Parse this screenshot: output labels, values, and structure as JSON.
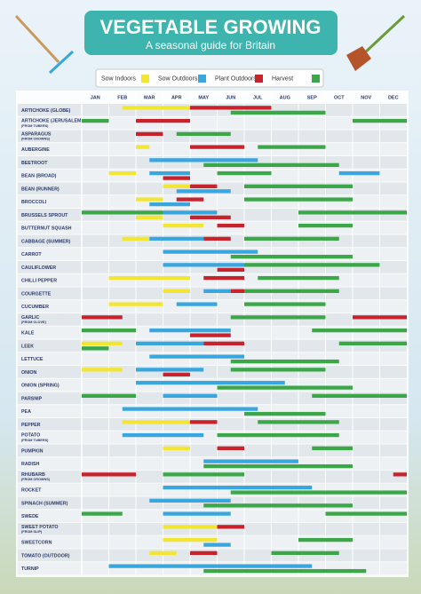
{
  "chart_data": {
    "type": "gantt",
    "title": "VEGETABLE GROWING",
    "subtitle": "A seasonal guide for Britain",
    "activities": [
      {
        "name": "Sow Indoors",
        "color": "#f3e633"
      },
      {
        "name": "Sow Outdoors",
        "color": "#3aa6de"
      },
      {
        "name": "Plant Outdoors",
        "color": "#c7232d"
      },
      {
        "name": "Harvest",
        "color": "#3ba748"
      }
    ],
    "categories": [
      "JAN",
      "FEB",
      "MAR",
      "APR",
      "MAY",
      "JUN",
      "JUL",
      "AUG",
      "SEP",
      "OCT",
      "NOV",
      "DEC"
    ],
    "xlim": [
      0,
      12
    ],
    "rows": [
      {
        "label": "ARTICHOKE (GLOBE)",
        "bars": [
          [
            0,
            1.5,
            4
          ],
          [
            2,
            4,
            7
          ],
          [
            3,
            5.5,
            9
          ]
        ]
      },
      {
        "label": "ARTICHOKE (JERUSALEM)",
        "sub": "(FROM TUBERS)",
        "bars": [
          [
            3,
            0,
            1
          ],
          [
            2,
            2,
            4
          ],
          [
            3,
            10,
            12
          ]
        ]
      },
      {
        "label": "ASPARAGUS",
        "sub": "(FROM CROWNS)",
        "bars": [
          [
            2,
            2,
            3
          ],
          [
            3,
            3.5,
            5.5
          ]
        ]
      },
      {
        "label": "AUBERGINE",
        "bars": [
          [
            0,
            2,
            2.5
          ],
          [
            2,
            4,
            6
          ],
          [
            3,
            6.5,
            9
          ]
        ]
      },
      {
        "label": "BEETROOT",
        "bars": [
          [
            1,
            2.5,
            6.5
          ],
          [
            3,
            4.5,
            9.5
          ]
        ]
      },
      {
        "label": "BEAN (BROAD)",
        "bars": [
          [
            0,
            1,
            2
          ],
          [
            1,
            2.5,
            4
          ],
          [
            2,
            3,
            4
          ],
          [
            3,
            5,
            7
          ],
          [
            1,
            9.5,
            11
          ]
        ]
      },
      {
        "label": "BEAN (RUNNER)",
        "bars": [
          [
            0,
            3,
            4
          ],
          [
            1,
            3.5,
            5.5
          ],
          [
            2,
            4,
            5
          ],
          [
            3,
            6,
            10
          ]
        ]
      },
      {
        "label": "BROCCOLI",
        "bars": [
          [
            0,
            2,
            3
          ],
          [
            1,
            2.5,
            4
          ],
          [
            2,
            3.5,
            4.5
          ],
          [
            3,
            6,
            10
          ]
        ]
      },
      {
        "label": "BRUSSELS SPROUT",
        "bars": [
          [
            3,
            0,
            3
          ],
          [
            0,
            2,
            3
          ],
          [
            1,
            3,
            5
          ],
          [
            2,
            4,
            5.5
          ],
          [
            3,
            8,
            12
          ]
        ]
      },
      {
        "label": "BUTTERNUT SQUASH",
        "bars": [
          [
            0,
            3,
            4.5
          ],
          [
            2,
            5,
            6
          ],
          [
            3,
            8,
            10
          ]
        ]
      },
      {
        "label": "CABBAGE (SUMMER)",
        "bars": [
          [
            0,
            1.5,
            2.5
          ],
          [
            1,
            2.5,
            4.5
          ],
          [
            2,
            4.5,
            5.5
          ],
          [
            3,
            6,
            9.5
          ]
        ]
      },
      {
        "label": "CARROT",
        "bars": [
          [
            1,
            3,
            6.5
          ],
          [
            3,
            5.5,
            10
          ]
        ]
      },
      {
        "label": "CAULIFLOWER",
        "bars": [
          [
            1,
            3,
            6
          ],
          [
            2,
            5,
            6
          ],
          [
            3,
            6,
            11
          ]
        ]
      },
      {
        "label": "CHILLI PEPPER",
        "bars": [
          [
            0,
            1,
            4
          ],
          [
            2,
            4.5,
            6
          ],
          [
            3,
            6.5,
            9.5
          ]
        ]
      },
      {
        "label": "COURGETTE",
        "bars": [
          [
            0,
            3,
            4
          ],
          [
            1,
            4.5,
            5.5
          ],
          [
            2,
            5.5,
            6
          ],
          [
            3,
            6,
            9.5
          ]
        ]
      },
      {
        "label": "CUCUMBER",
        "bars": [
          [
            0,
            1,
            3
          ],
          [
            1,
            3.5,
            5
          ],
          [
            3,
            6,
            9
          ]
        ]
      },
      {
        "label": "GARLIC",
        "sub": "(FROM CLOVE)",
        "bars": [
          [
            2,
            0,
            1.5
          ],
          [
            3,
            5.5,
            9
          ],
          [
            2,
            10,
            12
          ]
        ]
      },
      {
        "label": "KALE",
        "bars": [
          [
            3,
            0,
            2
          ],
          [
            1,
            2.5,
            5.5
          ],
          [
            2,
            4,
            5.5
          ],
          [
            3,
            8.5,
            12
          ]
        ]
      },
      {
        "label": "LEEK",
        "bars": [
          [
            0,
            0,
            1.5
          ],
          [
            3,
            0,
            1
          ],
          [
            1,
            2,
            4.5
          ],
          [
            2,
            4.5,
            6
          ],
          [
            3,
            9.5,
            12
          ]
        ]
      },
      {
        "label": "LETTUCE",
        "bars": [
          [
            1,
            2.5,
            6
          ],
          [
            3,
            5.5,
            9.5
          ]
        ]
      },
      {
        "label": "ONION",
        "bars": [
          [
            0,
            0,
            1.5
          ],
          [
            1,
            2,
            4.5
          ],
          [
            2,
            3,
            4
          ],
          [
            3,
            5.5,
            9
          ]
        ]
      },
      {
        "label": "ONION (SPRING)",
        "bars": [
          [
            1,
            2,
            7.5
          ],
          [
            3,
            5,
            10
          ]
        ]
      },
      {
        "label": "PARSNIP",
        "bars": [
          [
            3,
            0,
            2
          ],
          [
            1,
            3,
            5
          ],
          [
            3,
            8.5,
            12
          ]
        ]
      },
      {
        "label": "PEA",
        "bars": [
          [
            1,
            1.5,
            6.5
          ],
          [
            3,
            6,
            9
          ]
        ]
      },
      {
        "label": "PEPPER",
        "bars": [
          [
            0,
            1.5,
            4
          ],
          [
            2,
            4,
            5
          ],
          [
            3,
            6.5,
            9.5
          ]
        ]
      },
      {
        "label": "POTATO",
        "sub": "(FROM TUBERS)",
        "bars": [
          [
            1,
            1.5,
            4.5
          ],
          [
            3,
            5,
            9.5
          ]
        ]
      },
      {
        "label": "PUMPKIN",
        "bars": [
          [
            0,
            3,
            4
          ],
          [
            2,
            5,
            6
          ],
          [
            3,
            8.5,
            10
          ]
        ]
      },
      {
        "label": "RADISH",
        "bars": [
          [
            1,
            4.5,
            8
          ],
          [
            3,
            4.5,
            10
          ]
        ]
      },
      {
        "label": "RHUBARB",
        "sub": "(FROM CROWNS)",
        "bars": [
          [
            2,
            0,
            2
          ],
          [
            3,
            3,
            6
          ],
          [
            2,
            11.5,
            12
          ]
        ]
      },
      {
        "label": "ROCKET",
        "bars": [
          [
            1,
            3,
            8.5
          ],
          [
            3,
            5.5,
            12
          ]
        ]
      },
      {
        "label": "SPINACH (SUMMER)",
        "bars": [
          [
            1,
            2.5,
            5.5
          ],
          [
            3,
            4.5,
            10
          ]
        ]
      },
      {
        "label": "SWEDE",
        "bars": [
          [
            3,
            0,
            1.5
          ],
          [
            1,
            3,
            5.5
          ],
          [
            3,
            9,
            12
          ]
        ]
      },
      {
        "label": "SWEET POTATO",
        "sub": "(FROM SLIP)",
        "bars": [
          [
            0,
            3,
            5
          ],
          [
            2,
            5,
            6
          ]
        ]
      },
      {
        "label": "SWEETCORN",
        "bars": [
          [
            0,
            3,
            5
          ],
          [
            1,
            4.5,
            5.5
          ],
          [
            3,
            8,
            10
          ]
        ]
      },
      {
        "label": "TOMATO (OUTDOOR)",
        "bars": [
          [
            0,
            2.5,
            3.5
          ],
          [
            2,
            4,
            5
          ],
          [
            3,
            7,
            9.5
          ]
        ]
      },
      {
        "label": "TURNIP",
        "bars": [
          [
            1,
            1,
            8.5
          ],
          [
            3,
            4.5,
            10.5
          ]
        ]
      }
    ]
  }
}
